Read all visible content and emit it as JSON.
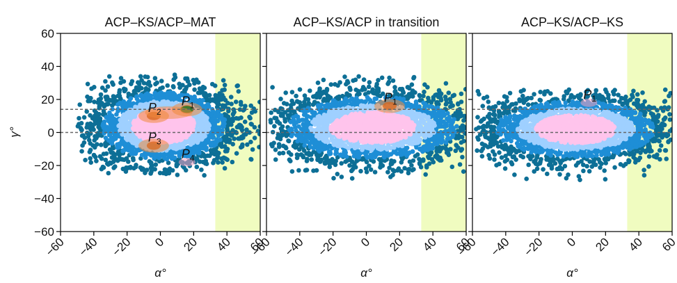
{
  "chart_data": [
    {
      "type": "scatter",
      "title": "ACP–KS/ACP–MAT",
      "xlabel": "α°",
      "ylabel": "γ°",
      "xlim": [
        -60,
        60
      ],
      "ylim": [
        -60,
        60
      ],
      "xticks": [
        -60,
        -40,
        -20,
        0,
        20,
        40,
        60
      ],
      "yticks": [
        -60,
        -40,
        -20,
        0,
        20,
        40,
        60
      ],
      "xtick_labels": [
        "−60",
        "−40",
        "−20",
        "0",
        "20",
        "40",
        "60"
      ],
      "ytick_labels": [
        "−60",
        "−40",
        "−20",
        "0",
        "20",
        "40",
        "60"
      ],
      "shaded_x_range": [
        33,
        60
      ],
      "hlines": [
        0,
        14
      ],
      "point_cloud": {
        "center": [
          2,
          4
        ],
        "spread_x": 22,
        "spread_y": 12,
        "x_range": [
          -50,
          60
        ],
        "y_range": [
          -26,
          35
        ]
      },
      "hotspots": [
        {
          "label": "P",
          "sub": "1",
          "x": 16,
          "y": 14,
          "level": "high"
        },
        {
          "label": "P",
          "sub": "2",
          "x": -4,
          "y": 10,
          "level": "medium"
        },
        {
          "label": "P",
          "sub": "3",
          "x": -4,
          "y": -8,
          "level": "medium"
        },
        {
          "label": "P",
          "sub": "4",
          "x": 16,
          "y": -18,
          "level": "low"
        }
      ]
    },
    {
      "type": "scatter",
      "title": "ACP–KS/ACP in transition",
      "xlabel": "α°",
      "ylabel": "",
      "xlim": [
        -60,
        60
      ],
      "ylim": [
        -60,
        60
      ],
      "xticks": [
        -60,
        -40,
        -20,
        0,
        20,
        40,
        60
      ],
      "xtick_labels": [
        "−60",
        "−40",
        "−20",
        "0",
        "20",
        "40",
        "60"
      ],
      "shaded_x_range": [
        33,
        60
      ],
      "hlines": [
        0,
        14
      ],
      "point_cloud": {
        "center": [
          4,
          3
        ],
        "spread_x": 30,
        "spread_y": 11,
        "x_range": [
          -58,
          60
        ],
        "y_range": [
          -28,
          34
        ]
      },
      "hotspots": [
        {
          "label": "P",
          "sub": "1",
          "x": 14,
          "y": 16,
          "level": "medium"
        }
      ]
    },
    {
      "type": "scatter",
      "title": "ACP–KS/ACP–KS",
      "xlabel": "α°",
      "ylabel": "",
      "xlim": [
        -60,
        60
      ],
      "ylim": [
        -60,
        60
      ],
      "xticks": [
        -60,
        -40,
        -20,
        0,
        20,
        40,
        60
      ],
      "xtick_labels": [
        "−60",
        "−40",
        "−20",
        "0",
        "20",
        "40",
        "60"
      ],
      "shaded_x_range": [
        33,
        60
      ],
      "hlines": [
        0,
        14
      ],
      "point_cloud": {
        "center": [
          2,
          2
        ],
        "spread_x": 28,
        "spread_y": 10,
        "x_range": [
          -58,
          60
        ],
        "y_range": [
          -30,
          26
        ]
      },
      "hotspots": [
        {
          "label": "P",
          "sub": "1",
          "x": 10,
          "y": 18,
          "level": "low"
        }
      ]
    }
  ],
  "colors": {
    "shade": "#f0fcc0",
    "outer": "#0d6f96",
    "mid": "#1e8ed6",
    "light": "#9fd0ff",
    "pink": "#ffc4ec",
    "orange": "#f08a3c",
    "dark_orange": "#d9651b",
    "green": "#2d7a2d",
    "guide": "#666666"
  }
}
